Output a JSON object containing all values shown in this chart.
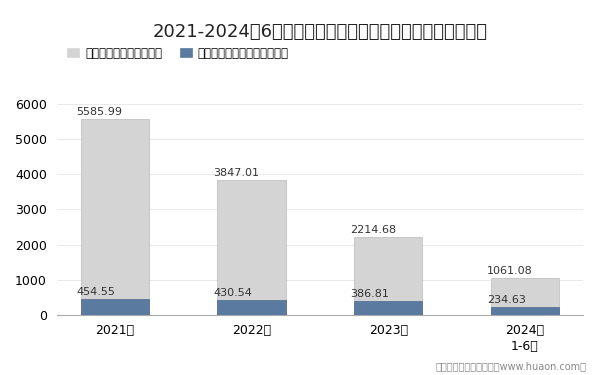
{
  "title": "2021-2024年6月贵州省房地产商品房及商品房现房销售面积",
  "categories": [
    "2021年",
    "2022年",
    "2023年",
    "2024年\n1-6月"
  ],
  "bar1_values": [
    5585.99,
    3847.01,
    2214.68,
    1061.08
  ],
  "bar2_values": [
    454.55,
    430.54,
    386.81,
    234.63
  ],
  "bar1_label": "商品房销售面积（万㎡）",
  "bar2_label": "商品房现房销售面积（万㎡）",
  "bar1_color": "#d4d4d4",
  "bar2_color": "#5a7a9f",
  "bar1_edgecolor": "#bbbbbb",
  "bar2_edgecolor": "#4a6a8f",
  "ylim": [
    0,
    6500
  ],
  "yticks": [
    0,
    1000,
    2000,
    3000,
    4000,
    5000,
    6000
  ],
  "footnote": "制图：华经产业研究院（www.huaon.com）",
  "background_color": "#ffffff",
  "title_fontsize": 13,
  "tick_fontsize": 9,
  "annot_fontsize": 8,
  "bar_width": 0.5
}
